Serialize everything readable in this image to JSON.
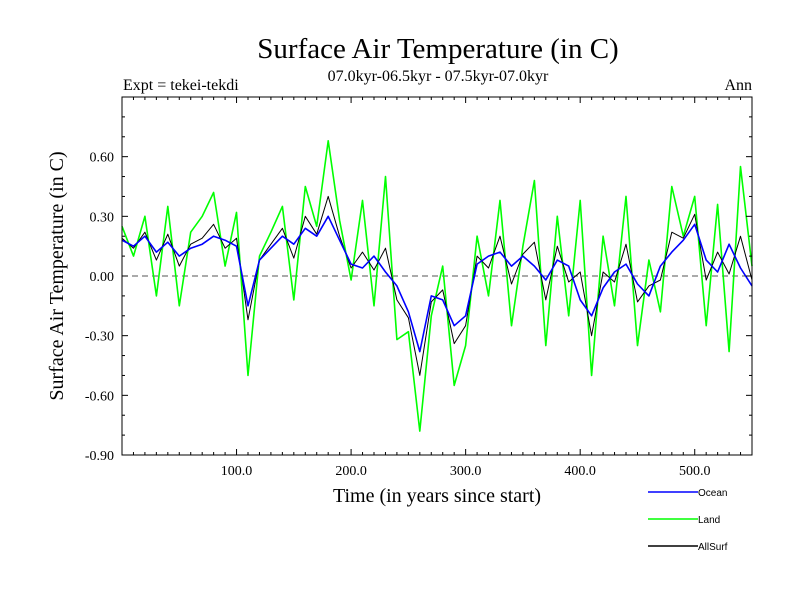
{
  "chart_data": {
    "type": "line",
    "title": "Surface Air Temperature (in C)",
    "subtitle": "07.0kyr-06.5kyr - 07.5kyr-07.0kyr",
    "experiment_label": "Expt = tekei-tekdi",
    "season_label": "Ann",
    "xlabel": "Time (in years since start)",
    "ylabel": "Surface Air Temperature (in C)",
    "xlim": [
      0,
      550
    ],
    "ylim": [
      -0.9,
      0.9
    ],
    "x_ticks": [
      100,
      200,
      300,
      400,
      500
    ],
    "x_tick_labels": [
      "100.0",
      "200.0",
      "300.0",
      "400.0",
      "500.0"
    ],
    "y_ticks": [
      -0.9,
      -0.6,
      -0.3,
      0.0,
      0.3,
      0.6
    ],
    "y_tick_labels": [
      "-0.90",
      "-0.60",
      "-0.30",
      "0.00",
      "0.30",
      "0.60"
    ],
    "zero_line": true,
    "legend_position": "bottom-right",
    "series": [
      {
        "name": "Ocean",
        "color": "#0000ff",
        "x": [
          0,
          10,
          20,
          30,
          40,
          50,
          60,
          70,
          80,
          90,
          100,
          110,
          120,
          130,
          140,
          150,
          160,
          170,
          180,
          190,
          200,
          210,
          220,
          230,
          240,
          250,
          260,
          270,
          280,
          290,
          300,
          310,
          320,
          330,
          340,
          350,
          360,
          370,
          380,
          390,
          400,
          410,
          420,
          430,
          440,
          450,
          460,
          470,
          480,
          490,
          500,
          510,
          520,
          530,
          540,
          550
        ],
        "values": [
          0.18,
          0.15,
          0.2,
          0.12,
          0.17,
          0.1,
          0.14,
          0.16,
          0.2,
          0.18,
          0.15,
          -0.15,
          0.08,
          0.14,
          0.2,
          0.16,
          0.24,
          0.2,
          0.3,
          0.18,
          0.06,
          0.04,
          0.1,
          0.02,
          -0.05,
          -0.18,
          -0.38,
          -0.1,
          -0.12,
          -0.25,
          -0.2,
          0.06,
          0.1,
          0.12,
          0.05,
          0.1,
          0.05,
          -0.02,
          0.08,
          0.05,
          -0.12,
          -0.2,
          -0.06,
          0.02,
          0.06,
          -0.04,
          -0.1,
          0.05,
          0.12,
          0.18,
          0.26,
          0.08,
          0.02,
          0.16,
          0.04,
          -0.05
        ]
      },
      {
        "name": "Land",
        "color": "#00ff00",
        "x": [
          0,
          10,
          20,
          30,
          40,
          50,
          60,
          70,
          80,
          90,
          100,
          110,
          120,
          130,
          140,
          150,
          160,
          170,
          180,
          190,
          200,
          210,
          220,
          230,
          240,
          250,
          260,
          270,
          280,
          290,
          300,
          310,
          320,
          330,
          340,
          350,
          360,
          370,
          380,
          390,
          400,
          410,
          420,
          430,
          440,
          450,
          460,
          470,
          480,
          490,
          500,
          510,
          520,
          530,
          540,
          550
        ],
        "values": [
          0.25,
          0.1,
          0.3,
          -0.1,
          0.35,
          -0.15,
          0.22,
          0.3,
          0.42,
          0.05,
          0.32,
          -0.5,
          0.1,
          0.22,
          0.35,
          -0.12,
          0.45,
          0.25,
          0.68,
          0.28,
          -0.02,
          0.38,
          -0.15,
          0.5,
          -0.32,
          -0.28,
          -0.78,
          -0.2,
          0.05,
          -0.55,
          -0.35,
          0.2,
          -0.1,
          0.38,
          -0.25,
          0.15,
          0.48,
          -0.35,
          0.3,
          -0.2,
          0.38,
          -0.5,
          0.2,
          -0.15,
          0.4,
          -0.35,
          0.08,
          -0.18,
          0.45,
          0.2,
          0.4,
          -0.25,
          0.36,
          -0.38,
          0.55,
          0.05
        ]
      },
      {
        "name": "AllSurf",
        "color": "#000000",
        "x": [
          0,
          10,
          20,
          30,
          40,
          50,
          60,
          70,
          80,
          90,
          100,
          110,
          120,
          130,
          140,
          150,
          160,
          170,
          180,
          190,
          200,
          210,
          220,
          230,
          240,
          250,
          260,
          270,
          280,
          290,
          300,
          310,
          320,
          330,
          340,
          350,
          360,
          370,
          380,
          390,
          400,
          410,
          420,
          430,
          440,
          450,
          460,
          470,
          480,
          490,
          500,
          510,
          520,
          530,
          540,
          550
        ],
        "values": [
          0.19,
          0.14,
          0.22,
          0.08,
          0.21,
          0.05,
          0.16,
          0.19,
          0.26,
          0.14,
          0.19,
          -0.22,
          0.08,
          0.16,
          0.24,
          0.09,
          0.3,
          0.21,
          0.4,
          0.2,
          0.04,
          0.12,
          0.03,
          0.14,
          -0.12,
          -0.21,
          -0.5,
          -0.13,
          -0.07,
          -0.34,
          -0.25,
          0.1,
          0.04,
          0.2,
          -0.04,
          0.11,
          0.17,
          -0.12,
          0.15,
          -0.03,
          0.02,
          -0.3,
          0.02,
          -0.03,
          0.16,
          -0.13,
          -0.05,
          -0.02,
          0.22,
          0.19,
          0.31,
          -0.02,
          0.12,
          0.01,
          0.2,
          -0.02
        ]
      }
    ]
  }
}
